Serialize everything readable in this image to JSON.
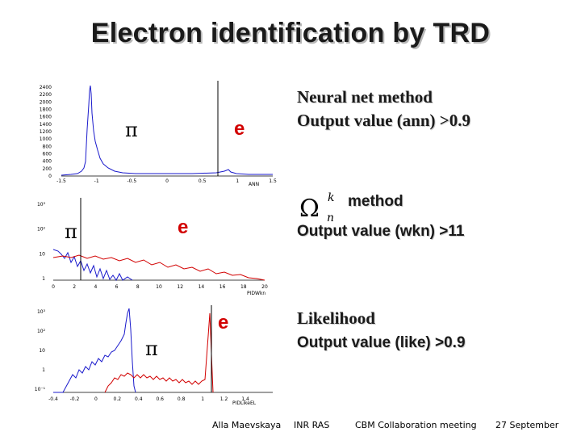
{
  "slide": {
    "title": "Electron identification by TRD",
    "panels": [
      {
        "pion_symbol": "π",
        "electron_label": "e",
        "method_line1": "Neural net method",
        "method_line2": "Output value (ann) >0.9",
        "xaxis_title": "ANN",
        "y_ticks": [
          "2400",
          "2200",
          "2000",
          "1800",
          "1600",
          "1400",
          "1200",
          "1000",
          "800",
          "600",
          "400",
          "200",
          "0"
        ],
        "x_ticks": [
          "-1.5",
          "-1",
          "-0.5",
          "0",
          "0.5",
          "1",
          "1.5"
        ]
      },
      {
        "pion_symbol": "π",
        "electron_label": "e",
        "formula_main": "Ω",
        "formula_sup": "k",
        "formula_sub": "n",
        "method_line1": "method",
        "method_line2": "Output value (wkn) >11",
        "xaxis_title": "PIDWkn",
        "y_ticks": [
          "10³",
          "10²",
          "10",
          "1"
        ],
        "x_ticks": [
          "0",
          "2",
          "4",
          "6",
          "8",
          "10",
          "12",
          "14",
          "16",
          "18",
          "20"
        ]
      },
      {
        "pion_symbol": "π",
        "electron_label": "e",
        "method_line1": "Likelihood",
        "method_line2": "Output value (like) >0.9",
        "xaxis_title": "PIDLikeEL",
        "y_ticks": [
          "10³",
          "10²",
          "10",
          "1",
          "10⁻¹"
        ],
        "x_ticks": [
          "-0.4",
          "-0.2",
          "0",
          "0.2",
          "0.4",
          "0.6",
          "0.8",
          "1",
          "1.2",
          "1.4"
        ]
      }
    ],
    "footer": {
      "author": "Alla Maevskaya",
      "institute": "INR RAS",
      "event": "CBM Collaboration meeting",
      "date": "27 September"
    },
    "colors": {
      "pion_histogram": "#1a1acc",
      "electron_histogram": "#d20000",
      "cut_line": "#000000"
    }
  }
}
